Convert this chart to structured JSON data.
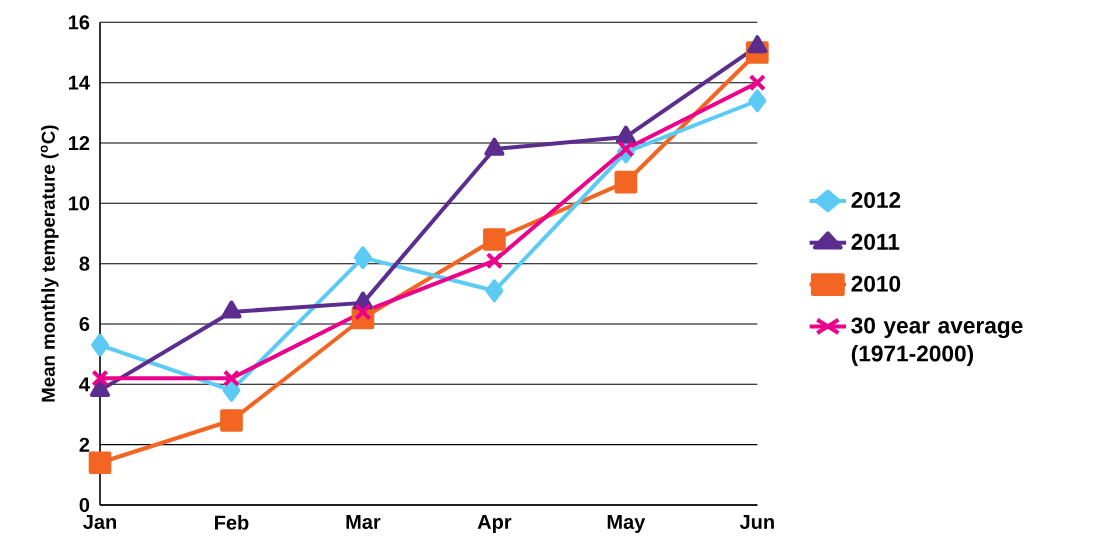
{
  "chart_data": {
    "type": "line",
    "ylabel": "Mean monthly temperature ($^{o}$C)",
    "categories": [
      "Jan",
      "Feb",
      "Mar",
      "Apr",
      "May",
      "Jun"
    ],
    "series": [
      {
        "name": "2012",
        "color": "#5bcbf5",
        "marker": "diamond",
        "values": [
          5.3,
          3.8,
          8.2,
          7.1,
          11.7,
          13.4
        ]
      },
      {
        "name": "2011",
        "color": "#5b2d8e",
        "marker": "triangle",
        "values": [
          3.8,
          6.4,
          6.7,
          11.8,
          12.2,
          15.2
        ]
      },
      {
        "name": "2010",
        "color": "#f26522",
        "marker": "square",
        "values": [
          1.4,
          2.8,
          6.2,
          8.8,
          10.7,
          15.0
        ]
      },
      {
        "name": "30 year average (1971-2000)",
        "color": "#ec008c",
        "marker": "cross",
        "values": [
          4.2,
          4.2,
          6.4,
          8.1,
          11.8,
          14.0
        ]
      }
    ],
    "ylim": [
      0,
      16
    ],
    "yticks": [
      0,
      2,
      4,
      6,
      8,
      10,
      12,
      14,
      16
    ],
    "grid": "y",
    "legend": "right",
    "line_style": "solid"
  }
}
